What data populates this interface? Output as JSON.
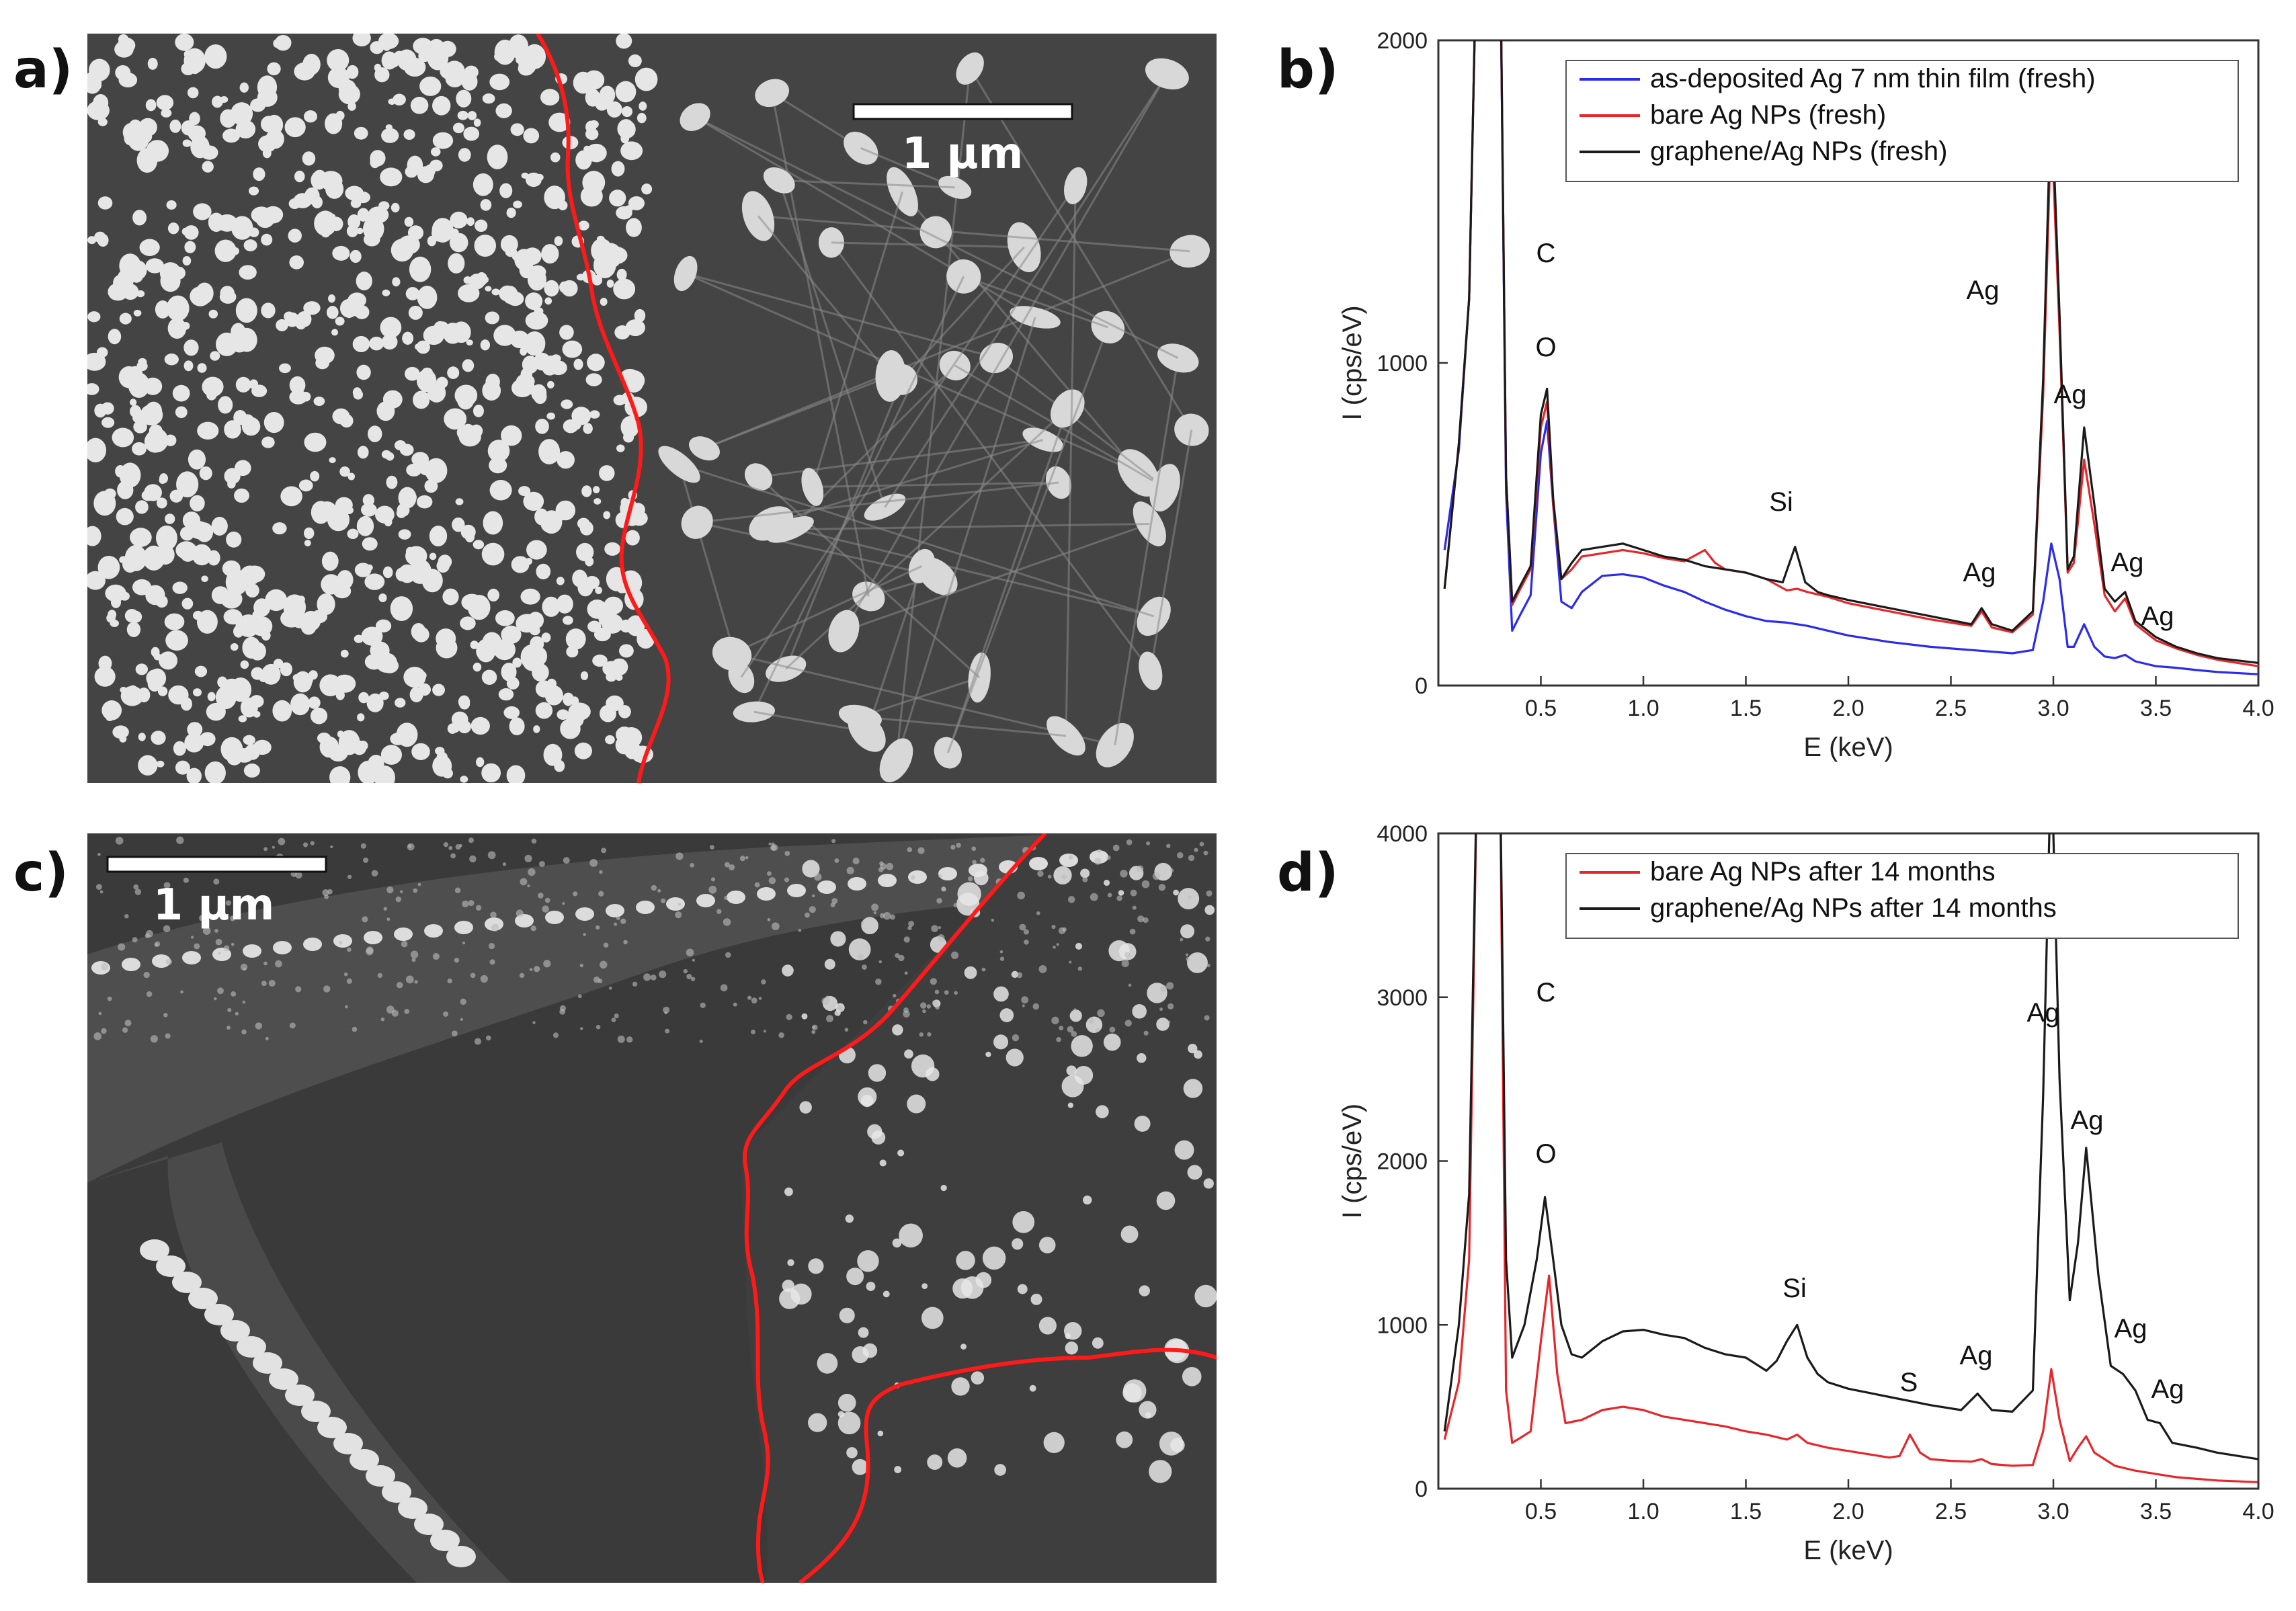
{
  "panels": {
    "a": {
      "label": "a)",
      "scale_bar": "1 µm"
    },
    "b": {
      "label": "b)"
    },
    "c": {
      "label": "c)",
      "scale_bar": "1 µm"
    },
    "d": {
      "label": "d)"
    }
  },
  "colors": {
    "blue": "#2b2bf0",
    "red": "#e8262a",
    "black": "#1a1a1a",
    "sem_background": "#444444",
    "particle": "#e6e6e6",
    "boundary": "#ff1a1a"
  },
  "chart_data": [
    {
      "type": "line",
      "panel": "b",
      "xlabel": "E (keV)",
      "ylabel": "I (cps/eV)",
      "xlim": [
        0.0,
        4.0
      ],
      "ylim": [
        0,
        2000
      ],
      "x_ticks": [
        0.5,
        1.0,
        1.5,
        2.0,
        2.5,
        3.0,
        3.5,
        4.0
      ],
      "x_tick_labels": [
        "0.5",
        "1.0",
        "1.5",
        "2.0",
        "2.5",
        "3.0",
        "3.5",
        "4.0"
      ],
      "y_ticks": [
        0,
        1000,
        2000
      ],
      "y_tick_labels": [
        "0",
        "1000",
        "2000"
      ],
      "legend_position": "top-right",
      "series": [
        {
          "name": "as-deposited Ag 7 nm thin film (fresh)",
          "color": "#2b2bf0",
          "x": [
            0.03,
            0.1,
            0.15,
            0.19,
            0.23,
            0.26,
            0.3,
            0.33,
            0.36,
            0.4,
            0.45,
            0.5,
            0.53,
            0.56,
            0.6,
            0.65,
            0.7,
            0.8,
            0.9,
            1.0,
            1.1,
            1.2,
            1.3,
            1.4,
            1.5,
            1.6,
            1.7,
            1.8,
            1.9,
            2.0,
            2.2,
            2.4,
            2.6,
            2.8,
            2.9,
            2.95,
            2.99,
            3.03,
            3.07,
            3.1,
            3.15,
            3.2,
            3.25,
            3.3,
            3.35,
            3.4,
            3.5,
            3.6,
            3.7,
            3.8,
            4.0
          ],
          "y": [
            420,
            730,
            1200,
            2400,
            2400,
            2400,
            2400,
            600,
            170,
            220,
            280,
            720,
            820,
            560,
            260,
            240,
            290,
            340,
            345,
            335,
            310,
            290,
            260,
            235,
            215,
            200,
            195,
            185,
            170,
            155,
            135,
            120,
            110,
            100,
            110,
            260,
            440,
            330,
            120,
            120,
            190,
            120,
            90,
            85,
            95,
            75,
            60,
            55,
            48,
            42,
            35
          ]
        },
        {
          "name": "bare Ag NPs (fresh)",
          "color": "#e8262a",
          "x": [
            0.03,
            0.1,
            0.15,
            0.19,
            0.23,
            0.26,
            0.3,
            0.33,
            0.36,
            0.4,
            0.45,
            0.5,
            0.53,
            0.56,
            0.6,
            0.65,
            0.7,
            0.8,
            0.9,
            1.0,
            1.1,
            1.2,
            1.3,
            1.35,
            1.4,
            1.5,
            1.6,
            1.7,
            1.75,
            1.8,
            1.9,
            2.0,
            2.2,
            2.4,
            2.6,
            2.65,
            2.7,
            2.8,
            2.9,
            2.95,
            2.99,
            3.03,
            3.07,
            3.1,
            3.15,
            3.2,
            3.25,
            3.3,
            3.35,
            3.4,
            3.5,
            3.6,
            3.7,
            3.8,
            4.0
          ],
          "y": [
            300,
            750,
            1200,
            2400,
            2400,
            2400,
            2400,
            650,
            250,
            300,
            360,
            800,
            880,
            560,
            330,
            360,
            400,
            410,
            420,
            410,
            395,
            385,
            420,
            380,
            360,
            350,
            330,
            295,
            300,
            290,
            275,
            255,
            230,
            205,
            185,
            230,
            180,
            165,
            220,
            900,
            1750,
            1100,
            350,
            380,
            700,
            500,
            280,
            230,
            270,
            190,
            140,
            115,
            95,
            80,
            60
          ]
        },
        {
          "name": "graphene/Ag NPs (fresh)",
          "color": "#1a1a1a",
          "x": [
            0.03,
            0.1,
            0.15,
            0.19,
            0.23,
            0.26,
            0.3,
            0.33,
            0.36,
            0.4,
            0.45,
            0.5,
            0.53,
            0.56,
            0.6,
            0.65,
            0.7,
            0.8,
            0.9,
            1.0,
            1.1,
            1.2,
            1.3,
            1.4,
            1.5,
            1.6,
            1.68,
            1.74,
            1.79,
            1.85,
            1.9,
            2.0,
            2.2,
            2.4,
            2.6,
            2.65,
            2.7,
            2.8,
            2.9,
            2.95,
            2.99,
            3.03,
            3.07,
            3.1,
            3.15,
            3.2,
            3.25,
            3.3,
            3.35,
            3.4,
            3.5,
            3.6,
            3.7,
            3.8,
            4.0
          ],
          "y": [
            300,
            750,
            1200,
            2400,
            2400,
            2400,
            2400,
            650,
            260,
            310,
            370,
            840,
            920,
            580,
            330,
            380,
            420,
            430,
            440,
            420,
            400,
            390,
            370,
            360,
            350,
            330,
            320,
            430,
            320,
            290,
            280,
            265,
            240,
            215,
            190,
            240,
            190,
            170,
            230,
            950,
            1850,
            1150,
            360,
            400,
            800,
            560,
            300,
            260,
            290,
            200,
            150,
            120,
            100,
            85,
            70
          ]
        }
      ],
      "annotations": [
        {
          "text": "C",
          "color": "#1a1a1a"
        },
        {
          "text": "O",
          "color": "#1a1a1a"
        },
        {
          "text": "Si",
          "color": "#1a1a1a"
        },
        {
          "text": "Ag",
          "color": "#1a1a1a"
        },
        {
          "text": "Ag",
          "color": "#1a1a1a"
        },
        {
          "text": "Ag",
          "color": "#1a1a1a"
        },
        {
          "text": "Ag",
          "color": "#1a1a1a"
        },
        {
          "text": "Ag",
          "color": "#1a1a1a"
        }
      ]
    },
    {
      "type": "line",
      "panel": "d",
      "xlabel": "E (keV)",
      "ylabel": "I (cps/eV)",
      "xlim": [
        0.0,
        4.0
      ],
      "ylim": [
        0,
        4000
      ],
      "x_ticks": [
        0.5,
        1.0,
        1.5,
        2.0,
        2.5,
        3.0,
        3.5,
        4.0
      ],
      "x_tick_labels": [
        "0.5",
        "1.0",
        "1.5",
        "2.0",
        "2.5",
        "3.0",
        "3.5",
        "4.0"
      ],
      "y_ticks": [
        0,
        1000,
        2000,
        3000,
        4000
      ],
      "y_tick_labels": [
        "0",
        "1000",
        "2000",
        "3000",
        "4000"
      ],
      "legend_position": "top-right",
      "series": [
        {
          "name": "bare Ag NPs after 14 months",
          "color": "#e8262a",
          "x": [
            0.03,
            0.1,
            0.15,
            0.19,
            0.23,
            0.26,
            0.3,
            0.33,
            0.36,
            0.4,
            0.45,
            0.5,
            0.54,
            0.58,
            0.62,
            0.7,
            0.8,
            0.9,
            1.0,
            1.1,
            1.2,
            1.3,
            1.4,
            1.5,
            1.6,
            1.7,
            1.75,
            1.8,
            1.9,
            2.0,
            2.1,
            2.2,
            2.25,
            2.3,
            2.35,
            2.4,
            2.5,
            2.6,
            2.65,
            2.7,
            2.8,
            2.9,
            2.95,
            2.99,
            3.03,
            3.08,
            3.12,
            3.16,
            3.2,
            3.3,
            3.4,
            3.5,
            3.6,
            3.7,
            3.8,
            4.0
          ],
          "y": [
            300,
            650,
            1400,
            4500,
            4500,
            4500,
            4500,
            600,
            280,
            310,
            350,
            900,
            1300,
            700,
            400,
            420,
            480,
            500,
            480,
            440,
            420,
            400,
            380,
            350,
            330,
            300,
            330,
            280,
            250,
            230,
            210,
            190,
            200,
            330,
            220,
            180,
            170,
            165,
            180,
            150,
            140,
            145,
            350,
            730,
            420,
            170,
            250,
            320,
            220,
            140,
            110,
            90,
            70,
            60,
            50,
            40
          ]
        },
        {
          "name": "graphene/Ag NPs after 14 months",
          "color": "#1a1a1a",
          "x": [
            0.03,
            0.1,
            0.15,
            0.19,
            0.23,
            0.26,
            0.3,
            0.33,
            0.36,
            0.42,
            0.48,
            0.52,
            0.56,
            0.6,
            0.65,
            0.7,
            0.8,
            0.9,
            1.0,
            1.1,
            1.2,
            1.3,
            1.4,
            1.5,
            1.6,
            1.65,
            1.7,
            1.75,
            1.8,
            1.85,
            1.9,
            2.0,
            2.2,
            2.4,
            2.55,
            2.63,
            2.7,
            2.8,
            2.9,
            2.95,
            2.99,
            3.03,
            3.08,
            3.12,
            3.16,
            3.22,
            3.28,
            3.34,
            3.4,
            3.46,
            3.52,
            3.58,
            3.7,
            3.8,
            4.0
          ],
          "y": [
            350,
            1000,
            1800,
            4500,
            4500,
            4500,
            4500,
            1400,
            800,
            1000,
            1400,
            1780,
            1400,
            1000,
            820,
            800,
            900,
            960,
            970,
            940,
            920,
            860,
            820,
            800,
            720,
            780,
            900,
            1000,
            800,
            700,
            650,
            610,
            560,
            510,
            480,
            580,
            480,
            470,
            600,
            2400,
            4500,
            2500,
            1150,
            1500,
            2080,
            1300,
            750,
            700,
            600,
            420,
            400,
            280,
            250,
            220,
            180
          ]
        }
      ],
      "annotations": [
        {
          "text": "C",
          "color": "#1a1a1a"
        },
        {
          "text": "O",
          "color": "#1a1a1a"
        },
        {
          "text": "Si",
          "color": "#1a1a1a"
        },
        {
          "text": "S",
          "color": "#e8262a"
        },
        {
          "text": "Ag",
          "color": "#1a1a1a"
        },
        {
          "text": "Ag",
          "color": "#1a1a1a"
        },
        {
          "text": "Ag",
          "color": "#1a1a1a"
        },
        {
          "text": "Ag",
          "color": "#1a1a1a"
        },
        {
          "text": "Ag",
          "color": "#1a1a1a"
        }
      ]
    }
  ]
}
